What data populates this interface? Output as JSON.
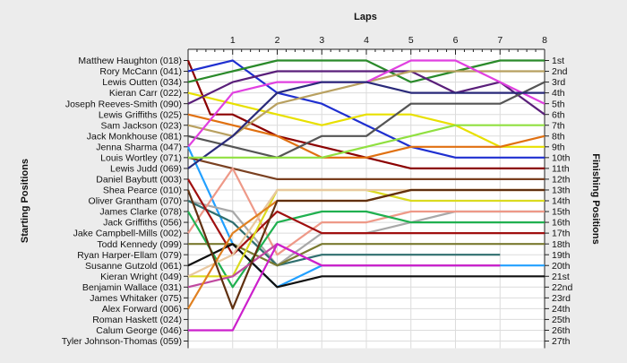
{
  "chart_data": {
    "type": "line",
    "title": "Laps",
    "ylabel_left": "Starting Positions",
    "ylabel_right": "Finishing Positions",
    "x_ticks": [
      1,
      2,
      3,
      4,
      5,
      6,
      7,
      8
    ],
    "x_range": [
      0,
      8
    ],
    "position_range": [
      1,
      27
    ],
    "finishing_labels": [
      "1st",
      "2nd",
      "3rd",
      "4th",
      "5th",
      "6th",
      "7th",
      "8th",
      "9th",
      "10th",
      "11th",
      "12th",
      "13th",
      "14th",
      "15th",
      "16th",
      "17th",
      "18th",
      "19th",
      "20th",
      "21st",
      "22nd",
      "23rd",
      "24th",
      "25th",
      "26th",
      "27th"
    ],
    "grid": true,
    "series": [
      {
        "name": "Matthew Haughton (018)",
        "color": "#8b0000",
        "x": [
          0,
          0.5,
          1,
          2,
          3,
          4,
          5,
          6,
          7,
          8
        ],
        "positions": [
          1,
          6,
          6,
          8,
          9,
          10,
          11,
          11,
          11,
          11
        ]
      },
      {
        "name": "Rory McCann (041)",
        "color": "#1f2fd0",
        "x": [
          0,
          1,
          2,
          3,
          4,
          5,
          6,
          7,
          8
        ],
        "positions": [
          2,
          1,
          4,
          5,
          7,
          9,
          10,
          10,
          10
        ]
      },
      {
        "name": "Lewis Outten (034)",
        "color": "#2a8a2a",
        "x": [
          0,
          1,
          2,
          3,
          4,
          5,
          6,
          7,
          8
        ],
        "positions": [
          3,
          2,
          1,
          1,
          1,
          3,
          2,
          1,
          1
        ]
      },
      {
        "name": "Kieran Carr (022)",
        "color": "#e8e000",
        "x": [
          0,
          1,
          2,
          3,
          4,
          5,
          6,
          7,
          8
        ],
        "positions": [
          4,
          5,
          6,
          7,
          6,
          6,
          7,
          9,
          9
        ]
      },
      {
        "name": "Joseph Reeves-Smith (090)",
        "color": "#5a1f7a",
        "x": [
          0,
          1,
          2,
          3,
          4,
          5,
          6,
          7,
          8
        ],
        "positions": [
          5,
          3,
          2,
          2,
          2,
          2,
          4,
          3,
          6
        ]
      },
      {
        "name": "Lewis Griffiths (025)",
        "color": "#e07010",
        "x": [
          0,
          1,
          2,
          3,
          4,
          5,
          6,
          7,
          8
        ],
        "positions": [
          6,
          7,
          8,
          10,
          10,
          9,
          9,
          9,
          8
        ]
      },
      {
        "name": "Sam Jackson (023)",
        "color": "#b8a060",
        "x": [
          0,
          1,
          2,
          3,
          4,
          5,
          6,
          7,
          8
        ],
        "positions": [
          7,
          8,
          5,
          4,
          3,
          2,
          2,
          2,
          2
        ]
      },
      {
        "name": "Jack Monkhouse (081)",
        "color": "#555555",
        "x": [
          0,
          1,
          2,
          3,
          4,
          5,
          6,
          7,
          8
        ],
        "positions": [
          8,
          9,
          10,
          8,
          8,
          5,
          5,
          5,
          3
        ]
      },
      {
        "name": "Jenna Sharma (047)",
        "color": "#e040e0",
        "x": [
          0,
          1,
          2,
          3,
          4,
          5,
          6,
          7,
          8
        ],
        "positions": [
          9,
          4,
          3,
          3,
          3,
          1,
          1,
          3,
          5
        ]
      },
      {
        "name": "Louis Wortley (071)",
        "color": "#22a0ff",
        "x": [
          0,
          1,
          2,
          3,
          4,
          5,
          6,
          7,
          8
        ],
        "positions": [
          9,
          18,
          22,
          20,
          20,
          20,
          20,
          20,
          20
        ]
      },
      {
        "name": "Lewis Judd (069)",
        "color": "#7a4020",
        "x": [
          0,
          1,
          2,
          3,
          4,
          5,
          6,
          7,
          8
        ],
        "positions": [
          10,
          11,
          12,
          12,
          12,
          12,
          12,
          12,
          12
        ]
      },
      {
        "name": "Daniel Baybutt (003)",
        "color": "#2a2a7a",
        "x": [
          0,
          1,
          2,
          3,
          4,
          5,
          6,
          7,
          8
        ],
        "positions": [
          11,
          8,
          4,
          3,
          3,
          4,
          4,
          4,
          4
        ]
      },
      {
        "name": "Shea Pearce (010)",
        "color": "#90e040",
        "x": [
          0,
          1,
          2,
          3,
          4,
          5,
          6,
          7,
          8
        ],
        "positions": [
          10,
          10,
          10,
          10,
          9,
          8,
          7,
          7,
          7
        ]
      },
      {
        "name": "Oliver Grantham (070)",
        "color": "#a8a8a8",
        "x": [
          0,
          1,
          2,
          3,
          4,
          5,
          6,
          7,
          8
        ],
        "positions": [
          14,
          15,
          20,
          17,
          17,
          16,
          15,
          15,
          15
        ]
      },
      {
        "name": "James Clarke (078)",
        "color": "#ee9988",
        "x": [
          0,
          1,
          2,
          3,
          4,
          5,
          6,
          7,
          8
        ],
        "positions": [
          17,
          11,
          19,
          16,
          16,
          15,
          15,
          15,
          15
        ]
      },
      {
        "name": "Jack Griffiths (056)",
        "color": "#2f6f6f",
        "x": [
          0,
          1,
          2,
          3,
          4,
          5,
          6,
          7
        ],
        "positions": [
          14,
          16,
          20,
          19,
          19,
          19,
          19,
          19
        ]
      },
      {
        "name": "Jake Campbell-Mills (002)",
        "color": "#20b050",
        "x": [
          0,
          1,
          2,
          3,
          4,
          5,
          6,
          7,
          8
        ],
        "positions": [
          15,
          22,
          16,
          15,
          15,
          16,
          16,
          16,
          16
        ]
      },
      {
        "name": "Todd Kennedy (099)",
        "color": "#7a7a30",
        "x": [
          0,
          1,
          2,
          3,
          4,
          5,
          6,
          7,
          8
        ],
        "positions": [
          18,
          18,
          20,
          18,
          18,
          18,
          18,
          18,
          18
        ]
      },
      {
        "name": "Ryan Harper-Ellam (079)",
        "color": "#a01010",
        "x": [
          0,
          1,
          2,
          3,
          4,
          5,
          6,
          7,
          8
        ],
        "positions": [
          12,
          19,
          15,
          17,
          17,
          17,
          17,
          17,
          17
        ]
      },
      {
        "name": "Susanne Gutzold (061)",
        "color": "#101010",
        "x": [
          0,
          1,
          2,
          3,
          4,
          5,
          6,
          7,
          8
        ],
        "positions": [
          20,
          18,
          22,
          21,
          21,
          21,
          21,
          21,
          21
        ]
      },
      {
        "name": "Kieran Wright (049)",
        "color": "#dada20",
        "x": [
          0,
          1,
          2,
          3,
          4,
          5,
          6,
          7,
          8
        ],
        "positions": [
          21,
          21,
          13,
          13,
          13,
          14,
          14,
          14,
          14
        ]
      },
      {
        "name": "Benjamin Wallace (031)",
        "color": "#c04aa0",
        "x": [
          0,
          1,
          2,
          3,
          4,
          5,
          6,
          7
        ],
        "positions": [
          22,
          21,
          18,
          20,
          20,
          20,
          20,
          20
        ]
      },
      {
        "name": "James Whitaker (075)",
        "color": "#e8c8a0",
        "x": [
          0,
          1,
          2,
          3,
          4,
          5,
          6,
          7,
          8
        ],
        "positions": [
          21,
          19,
          13,
          13,
          13,
          13,
          13,
          13,
          13
        ]
      },
      {
        "name": "Alex Forward (006)",
        "color": "#e08020",
        "x": [
          0,
          1,
          2,
          3,
          4,
          5,
          6,
          7,
          8
        ],
        "positions": [
          24,
          17,
          14,
          14,
          14,
          13,
          13,
          13,
          13
        ]
      },
      {
        "name": "Roman Haskett (024)",
        "color": "#603010",
        "x": [
          0,
          1,
          2,
          3,
          4,
          5,
          6,
          7,
          8
        ],
        "positions": [
          13,
          24,
          14,
          14,
          14,
          13,
          13,
          13,
          13
        ]
      },
      {
        "name": "Calum George (046)",
        "color": "#cc20cc",
        "x": [
          0,
          1,
          2,
          3,
          4,
          5,
          6,
          7
        ],
        "positions": [
          26,
          26,
          18,
          20,
          20,
          20,
          20,
          20
        ]
      },
      {
        "name": "Tyler Johnson-Thomas (059)",
        "color": "#606060",
        "x": [],
        "positions": []
      }
    ]
  }
}
